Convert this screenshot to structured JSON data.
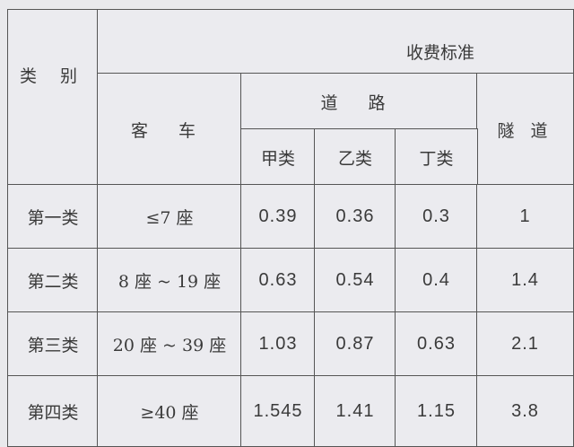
{
  "header": {
    "category": "类 别",
    "fee_standard": "收费标准",
    "passenger_car": "客 车",
    "road": "道 路",
    "tunnel": "隧 道",
    "class_a": "甲类",
    "class_b": "乙类",
    "class_d": "丁类"
  },
  "rows": [
    {
      "category": "第一类",
      "seats": "≤7 座",
      "a": "0.39",
      "b": "0.36",
      "d": "0.3",
      "tunnel": "1"
    },
    {
      "category": "第二类",
      "seats": "8 座 ~ 19 座",
      "a": "0.63",
      "b": "0.54",
      "d": "0.4",
      "tunnel": "1.4"
    },
    {
      "category": "第三类",
      "seats": "20 座 ~ 39 座",
      "a": "1.03",
      "b": "0.87",
      "d": "0.63",
      "tunnel": "2.1"
    },
    {
      "category": "第四类",
      "seats": "≥40 座",
      "a": "1.545",
      "b": "1.41",
      "d": "1.15",
      "tunnel": "3.8"
    }
  ]
}
